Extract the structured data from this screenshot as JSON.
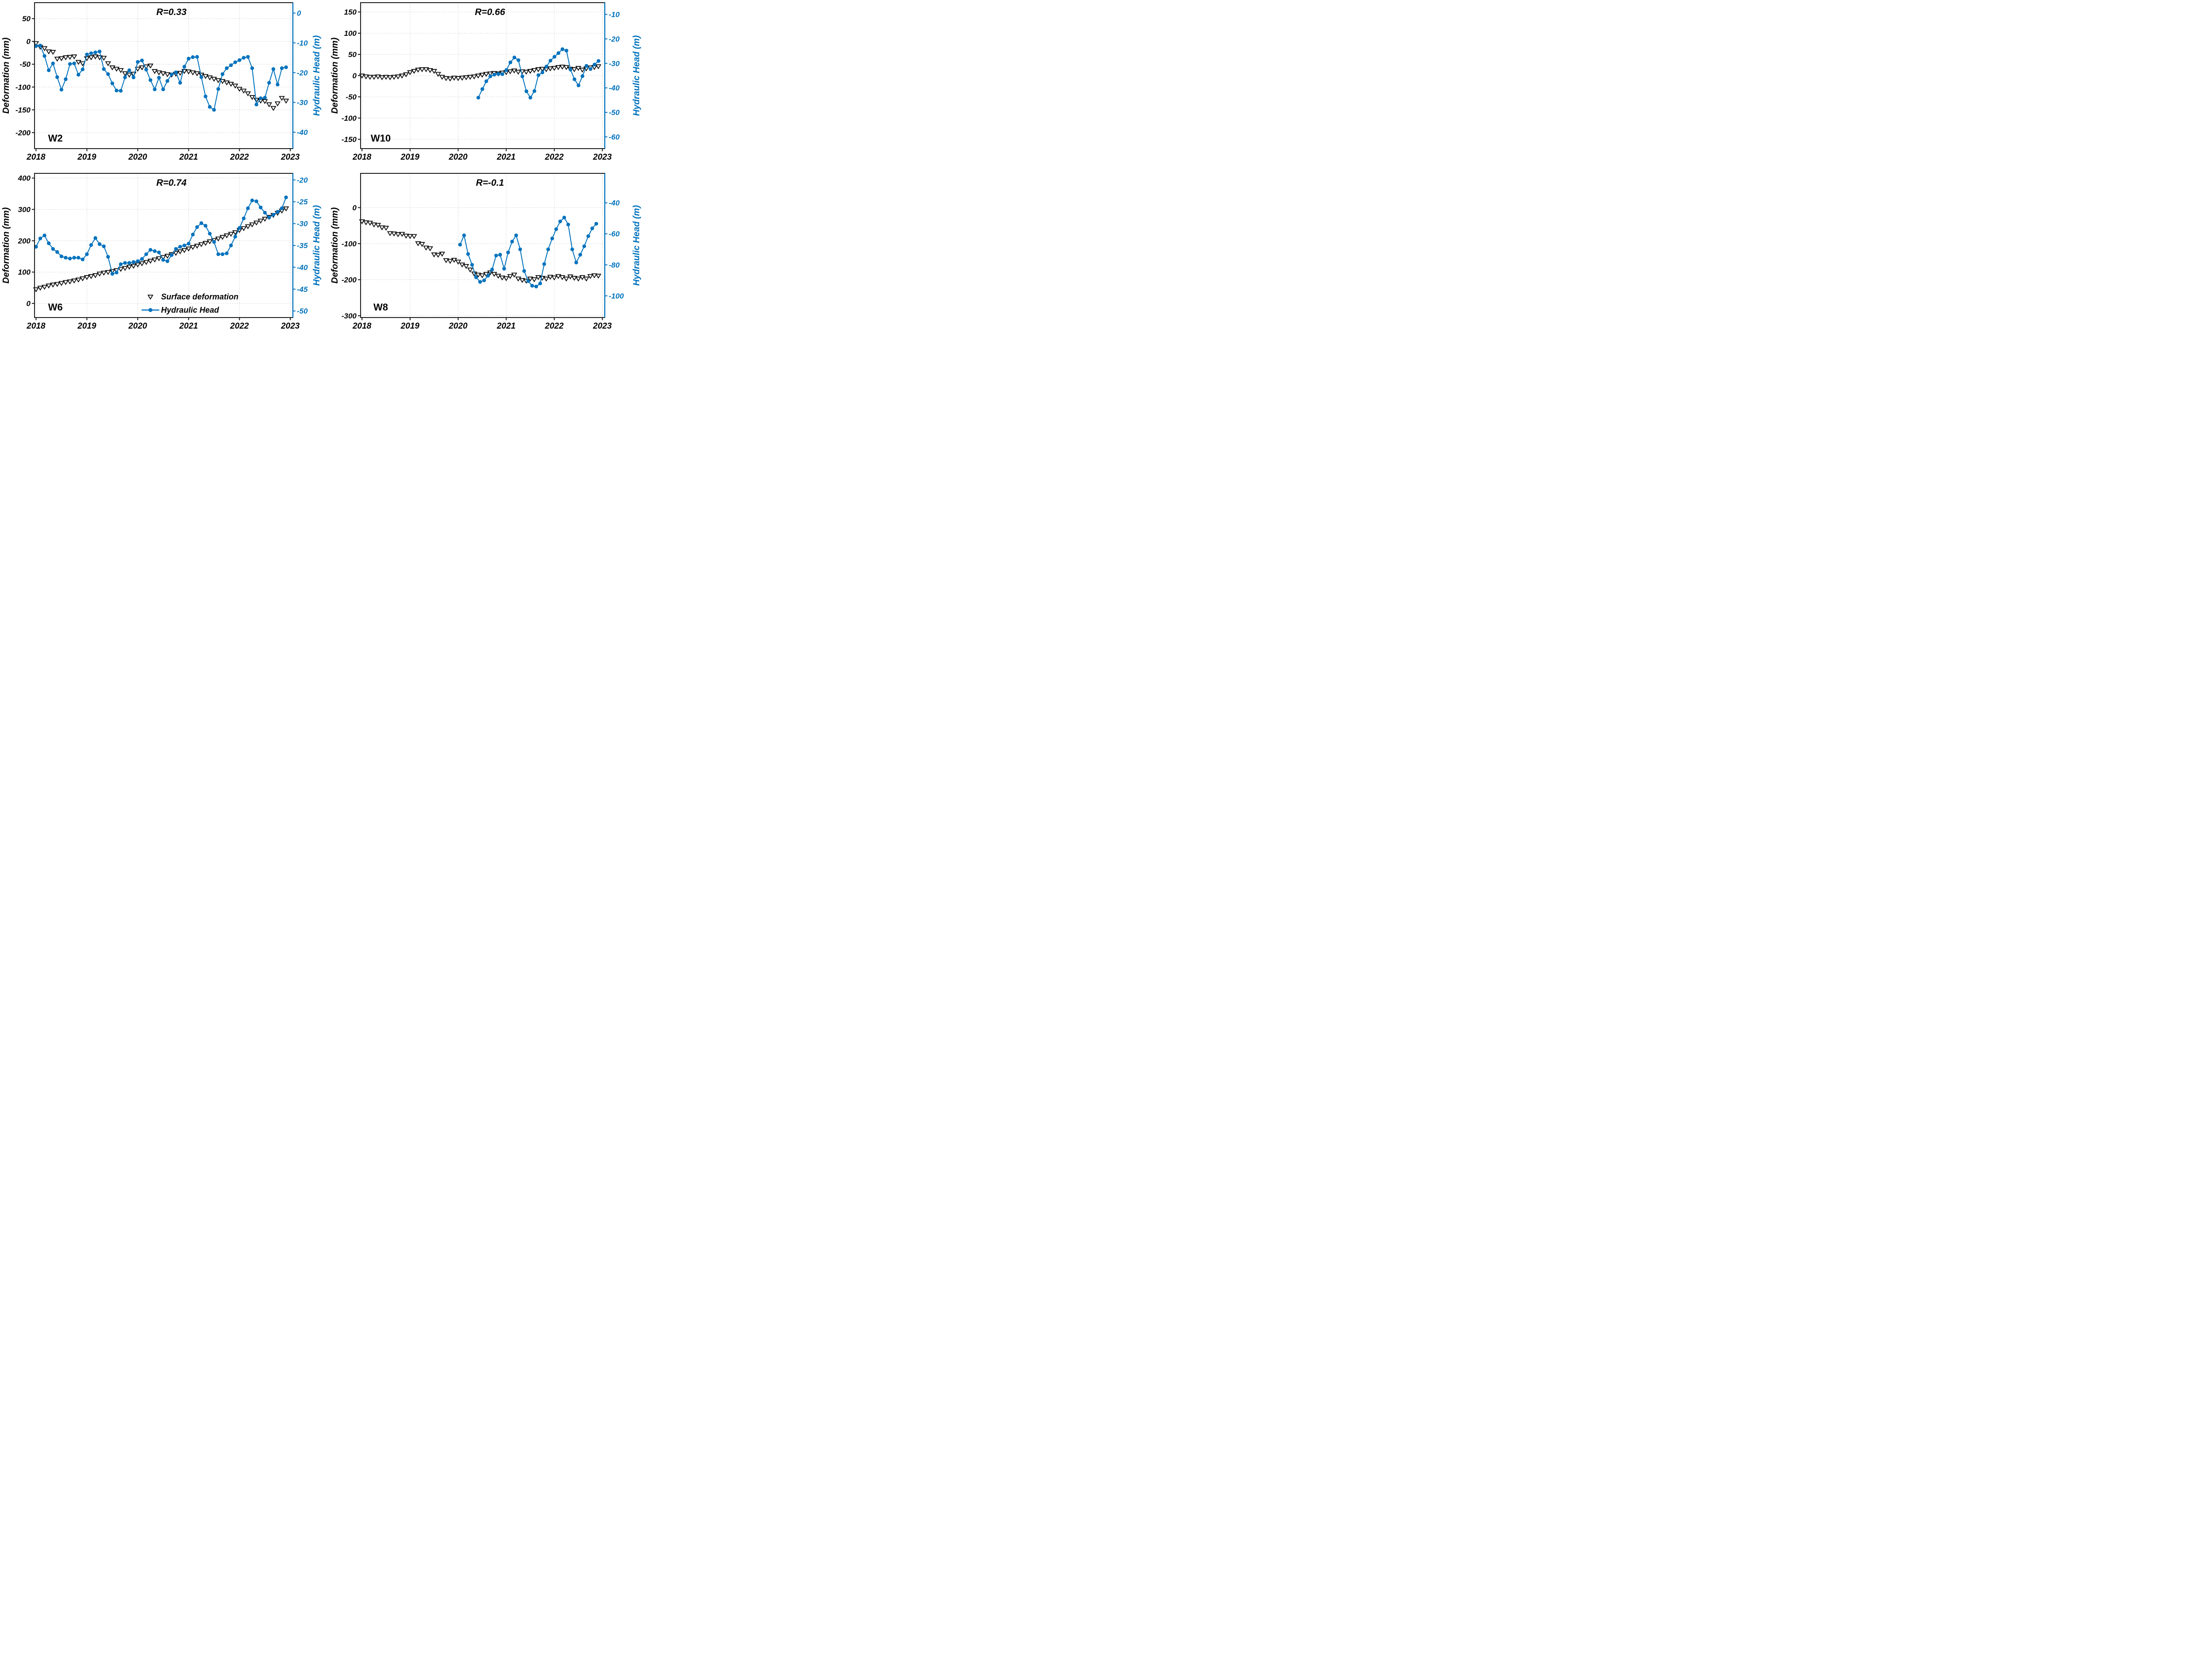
{
  "figure_title": "",
  "colors": {
    "head": "#0072BD",
    "deformation": "#000000",
    "grid": "#c9c9c9",
    "axis": "#1a1a1a",
    "background": "#ffffff"
  },
  "legend": {
    "host_panel": "W6",
    "items": [
      {
        "marker": "triangle",
        "label": "Surface deformation"
      },
      {
        "marker": "circle-line",
        "label": "Hydraulic Head"
      }
    ]
  },
  "chart_data": [
    {
      "type": "line",
      "well": "W2",
      "r_label": "R=0.33",
      "x_axis": {
        "range": [
          2017.97,
          2023.05
        ],
        "ticks": [
          2018,
          2019,
          2020,
          2021,
          2022,
          2023
        ]
      },
      "left_axis": {
        "label": "Deformation (mm)",
        "ticks": [
          50,
          0,
          -50,
          -100,
          -150,
          -200
        ],
        "range": [
          85,
          -235
        ]
      },
      "right_axis": {
        "label": "Hydraulic Head (m)",
        "ticks": [
          0,
          -10,
          -20,
          -30,
          -40
        ],
        "range": [
          3.5,
          -45.5
        ]
      },
      "series": [
        {
          "name": "Surface deformation",
          "axis": "left",
          "marker": "triangle",
          "x0": 2018.0,
          "dx": 0.08333,
          "values": [
            -4,
            -12,
            -15,
            -22,
            -23,
            -38,
            -37,
            -35,
            -34,
            -33,
            -45,
            -48,
            -37,
            -35,
            -33,
            -35,
            -36,
            -48,
            -57,
            -60,
            -63,
            -70,
            -73,
            -71,
            -60,
            -57,
            -55,
            -53,
            -65,
            -68,
            -70,
            -72,
            -73,
            -71,
            -69,
            -65,
            -66,
            -68,
            -70,
            -73,
            -76,
            -79,
            -82,
            -85,
            -87,
            -90,
            -93,
            -97,
            -104,
            -108,
            -114,
            -122,
            -128,
            -130,
            -131,
            -138,
            -146,
            -136,
            -124,
            -130
          ]
        },
        {
          "name": "Hydraulic Head",
          "axis": "right",
          "marker": "circle-line",
          "x0": 2018.0,
          "dx": 0.08333,
          "values": [
            -11.1,
            -10.9,
            -14.4,
            -19.2,
            -16.9,
            -21.5,
            -25.7,
            -22.2,
            -17.1,
            -16.9,
            -20.7,
            -18.9,
            -13.9,
            -13.5,
            -13.2,
            -12.9,
            -18.8,
            -20.5,
            -23.6,
            -26.0,
            -26.1,
            -21.6,
            -19.2,
            -21.6,
            -16.4,
            -15.9,
            -19.0,
            -22.5,
            -25.6,
            -21.7,
            -25.6,
            -22.8,
            -20.6,
            -19.9,
            -23.4,
            -18.0,
            -15.3,
            -14.8,
            -14.7,
            -21.5,
            -28.0,
            -31.5,
            -32.5,
            -25.5,
            -20.5,
            -18.5,
            -17.5,
            -16.5,
            -15.8,
            -15.0,
            -14.7,
            -18.5,
            -30.7,
            -28.6,
            -28.4,
            -23.4,
            -18.8,
            -24.0,
            -18.5,
            -18.2
          ]
        }
      ]
    },
    {
      "type": "line",
      "well": "W10",
      "r_label": "R=0.66",
      "x_axis": {
        "range": [
          2017.97,
          2023.05
        ],
        "ticks": [
          2018,
          2019,
          2020,
          2021,
          2022,
          2023
        ]
      },
      "left_axis": {
        "label": "Deformation (mm)",
        "ticks": [
          150,
          100,
          50,
          0,
          -50,
          -100,
          -150
        ],
        "range": [
          172,
          -172
        ]
      },
      "right_axis": {
        "label": "Hydraulic Head (m)",
        "ticks": [
          -10,
          -20,
          -30,
          -40,
          -50,
          -60
        ],
        "range": [
          -5.2,
          -64.8
        ]
      },
      "series": [
        {
          "name": "Surface deformation",
          "axis": "left",
          "marker": "triangle",
          "x0": 2018.0,
          "dx": 0.08333,
          "values": [
            0,
            -2,
            -3,
            -3,
            -2,
            -4,
            -3,
            -4,
            -3,
            -2,
            0,
            3,
            8,
            11,
            14,
            15,
            15,
            13,
            11,
            4,
            -3,
            -6,
            -7,
            -5,
            -6,
            -5,
            -4,
            -3,
            -2,
            0,
            2,
            4,
            5,
            6,
            5,
            7,
            8,
            10,
            12,
            9,
            10,
            9,
            11,
            13,
            15,
            16,
            15,
            17,
            18,
            20,
            21,
            20,
            16,
            15,
            18,
            14,
            17,
            19,
            20,
            22
          ]
        },
        {
          "name": "Hydraulic Head",
          "axis": "right",
          "marker": "circle-line",
          "x0": 2020.42,
          "dx": 0.08333,
          "values": [
            -44.0,
            -40.5,
            -37.3,
            -35.3,
            -34.6,
            -34.3,
            -34.4,
            -32.7,
            -29.6,
            -27.6,
            -28.7,
            -35.3,
            -41.4,
            -44.0,
            -41.3,
            -34.8,
            -33.7,
            -31.3,
            -28.9,
            -27.3,
            -25.8,
            -24.2,
            -24.8,
            -32.5,
            -36.5,
            -39.0,
            -35.2,
            -31.0,
            -32.3,
            -30.5,
            -29.0
          ]
        }
      ]
    },
    {
      "type": "line",
      "well": "W6",
      "r_label": "R=0.74",
      "x_axis": {
        "range": [
          2017.97,
          2023.05
        ],
        "ticks": [
          2018,
          2019,
          2020,
          2021,
          2022,
          2023
        ]
      },
      "left_axis": {
        "label": "Deformation (mm)",
        "ticks": [
          400,
          300,
          200,
          100,
          0
        ],
        "range": [
          415,
          -45
        ]
      },
      "right_axis": {
        "label": "Hydraulic Head (m)",
        "ticks": [
          -20,
          -25,
          -30,
          -35,
          -40,
          -45,
          -50
        ],
        "range": [
          -18.5,
          -51.5
        ]
      },
      "series": [
        {
          "name": "Surface deformation",
          "axis": "left",
          "marker": "triangle",
          "x0": 2018.0,
          "dx": 0.08333,
          "values": [
            45,
            50,
            53,
            57,
            60,
            62,
            65,
            68,
            70,
            73,
            76,
            80,
            84,
            87,
            90,
            95,
            98,
            100,
            103,
            106,
            110,
            113,
            117,
            120,
            124,
            128,
            132,
            136,
            140,
            144,
            148,
            152,
            157,
            161,
            166,
            170,
            175,
            180,
            184,
            189,
            193,
            198,
            202,
            207,
            212,
            217,
            222,
            227,
            234,
            240,
            246,
            252,
            258,
            264,
            270,
            276,
            282,
            289,
            296,
            303
          ]
        },
        {
          "name": "Hydraulic Head",
          "axis": "right",
          "marker": "circle-line",
          "x0": 2018.0,
          "dx": 0.08333,
          "values": [
            -35.3,
            -33.4,
            -32.7,
            -34.5,
            -35.8,
            -36.5,
            -37.5,
            -37.8,
            -38.0,
            -37.8,
            -37.8,
            -38.2,
            -37.0,
            -34.9,
            -33.3,
            -34.7,
            -35.2,
            -37.6,
            -41.5,
            -41.2,
            -39.3,
            -39.0,
            -39.0,
            -38.8,
            -38.6,
            -38.1,
            -37.0,
            -36.0,
            -36.3,
            -36.6,
            -38.3,
            -38.6,
            -37.2,
            -35.8,
            -35.3,
            -35.0,
            -34.6,
            -32.5,
            -30.8,
            -29.9,
            -30.5,
            -32.3,
            -34.2,
            -37.0,
            -37.0,
            -36.8,
            -35.0,
            -33.0,
            -31.0,
            -28.8,
            -26.5,
            -24.7,
            -24.9,
            -26.3,
            -27.5,
            -28.6,
            -28.0,
            -27.3,
            -26.5,
            -24.0
          ]
        }
      ]
    },
    {
      "type": "line",
      "well": "W8",
      "r_label": "R=-0.1",
      "x_axis": {
        "range": [
          2017.97,
          2023.05
        ],
        "ticks": [
          2018,
          2019,
          2020,
          2021,
          2022,
          2023
        ]
      },
      "left_axis": {
        "label": "Deformation (mm)",
        "ticks": [
          0,
          -100,
          -200,
          -300
        ],
        "range": [
          95,
          -305
        ]
      },
      "right_axis": {
        "label": "Hydraulic Head (m)",
        "ticks": [
          -40,
          -60,
          -80,
          -100
        ],
        "range": [
          -21,
          -114
        ]
      },
      "series": [
        {
          "name": "Surface deformation",
          "axis": "left",
          "marker": "triangle",
          "x0": 2018.0,
          "dx": 0.08333,
          "values": [
            -38,
            -41,
            -42,
            -47,
            -48,
            -55,
            -56,
            -71,
            -72,
            -74,
            -73,
            -78,
            -79,
            -79,
            -99,
            -101,
            -111,
            -113,
            -130,
            -131,
            -128,
            -146,
            -148,
            -145,
            -150,
            -158,
            -162,
            -172,
            -183,
            -186,
            -188,
            -184,
            -180,
            -184,
            -189,
            -194,
            -196,
            -190,
            -186,
            -197,
            -201,
            -203,
            -197,
            -199,
            -193,
            -195,
            -197,
            -192,
            -194,
            -190,
            -193,
            -197,
            -191,
            -195,
            -197,
            -193,
            -197,
            -190,
            -188,
            -189
          ]
        },
        {
          "name": "Hydraulic Head",
          "axis": "right",
          "marker": "circle-line",
          "x0": 2020.04,
          "dx": 0.08333,
          "values": [
            -67,
            -61,
            -73,
            -80,
            -88,
            -91,
            -90,
            -87,
            -83,
            -74,
            -73.5,
            -82.5,
            -72,
            -65,
            -61,
            -70,
            -84,
            -90.5,
            -93.5,
            -94,
            -92,
            -79.5,
            -70,
            -63,
            -57,
            -52,
            -49.5,
            -54,
            -70,
            -78.5,
            -73.5,
            -68,
            -61.5,
            -56.5,
            -53.5
          ]
        }
      ]
    }
  ]
}
